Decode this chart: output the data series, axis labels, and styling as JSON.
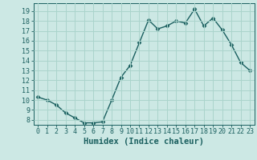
{
  "x": [
    0,
    1,
    2,
    3,
    4,
    5,
    6,
    7,
    8,
    9,
    10,
    11,
    12,
    13,
    14,
    15,
    16,
    17,
    18,
    19,
    20,
    21,
    22,
    23
  ],
  "y": [
    10.3,
    10.0,
    9.5,
    8.7,
    8.2,
    7.7,
    7.7,
    7.8,
    10.0,
    12.3,
    13.5,
    15.8,
    18.1,
    17.2,
    17.5,
    18.0,
    17.8,
    19.2,
    17.5,
    18.3,
    17.1,
    15.6,
    13.8,
    13.0
  ],
  "xlabel": "Humidex (Indice chaleur)",
  "bg_color": "#cce8e4",
  "line_color": "#1a5f5f",
  "grid_color": "#aad4cc",
  "tick_color": "#1a5f5f",
  "ylim": [
    7.5,
    19.8
  ],
  "xlim": [
    -0.5,
    23.5
  ],
  "yticks": [
    8,
    9,
    10,
    11,
    12,
    13,
    14,
    15,
    16,
    17,
    18,
    19
  ],
  "xticks": [
    0,
    1,
    2,
    3,
    4,
    5,
    6,
    7,
    8,
    9,
    10,
    11,
    12,
    13,
    14,
    15,
    16,
    17,
    18,
    19,
    20,
    21,
    22,
    23
  ],
  "xlabel_fontsize": 7.5,
  "tick_fontsize": 6.0
}
